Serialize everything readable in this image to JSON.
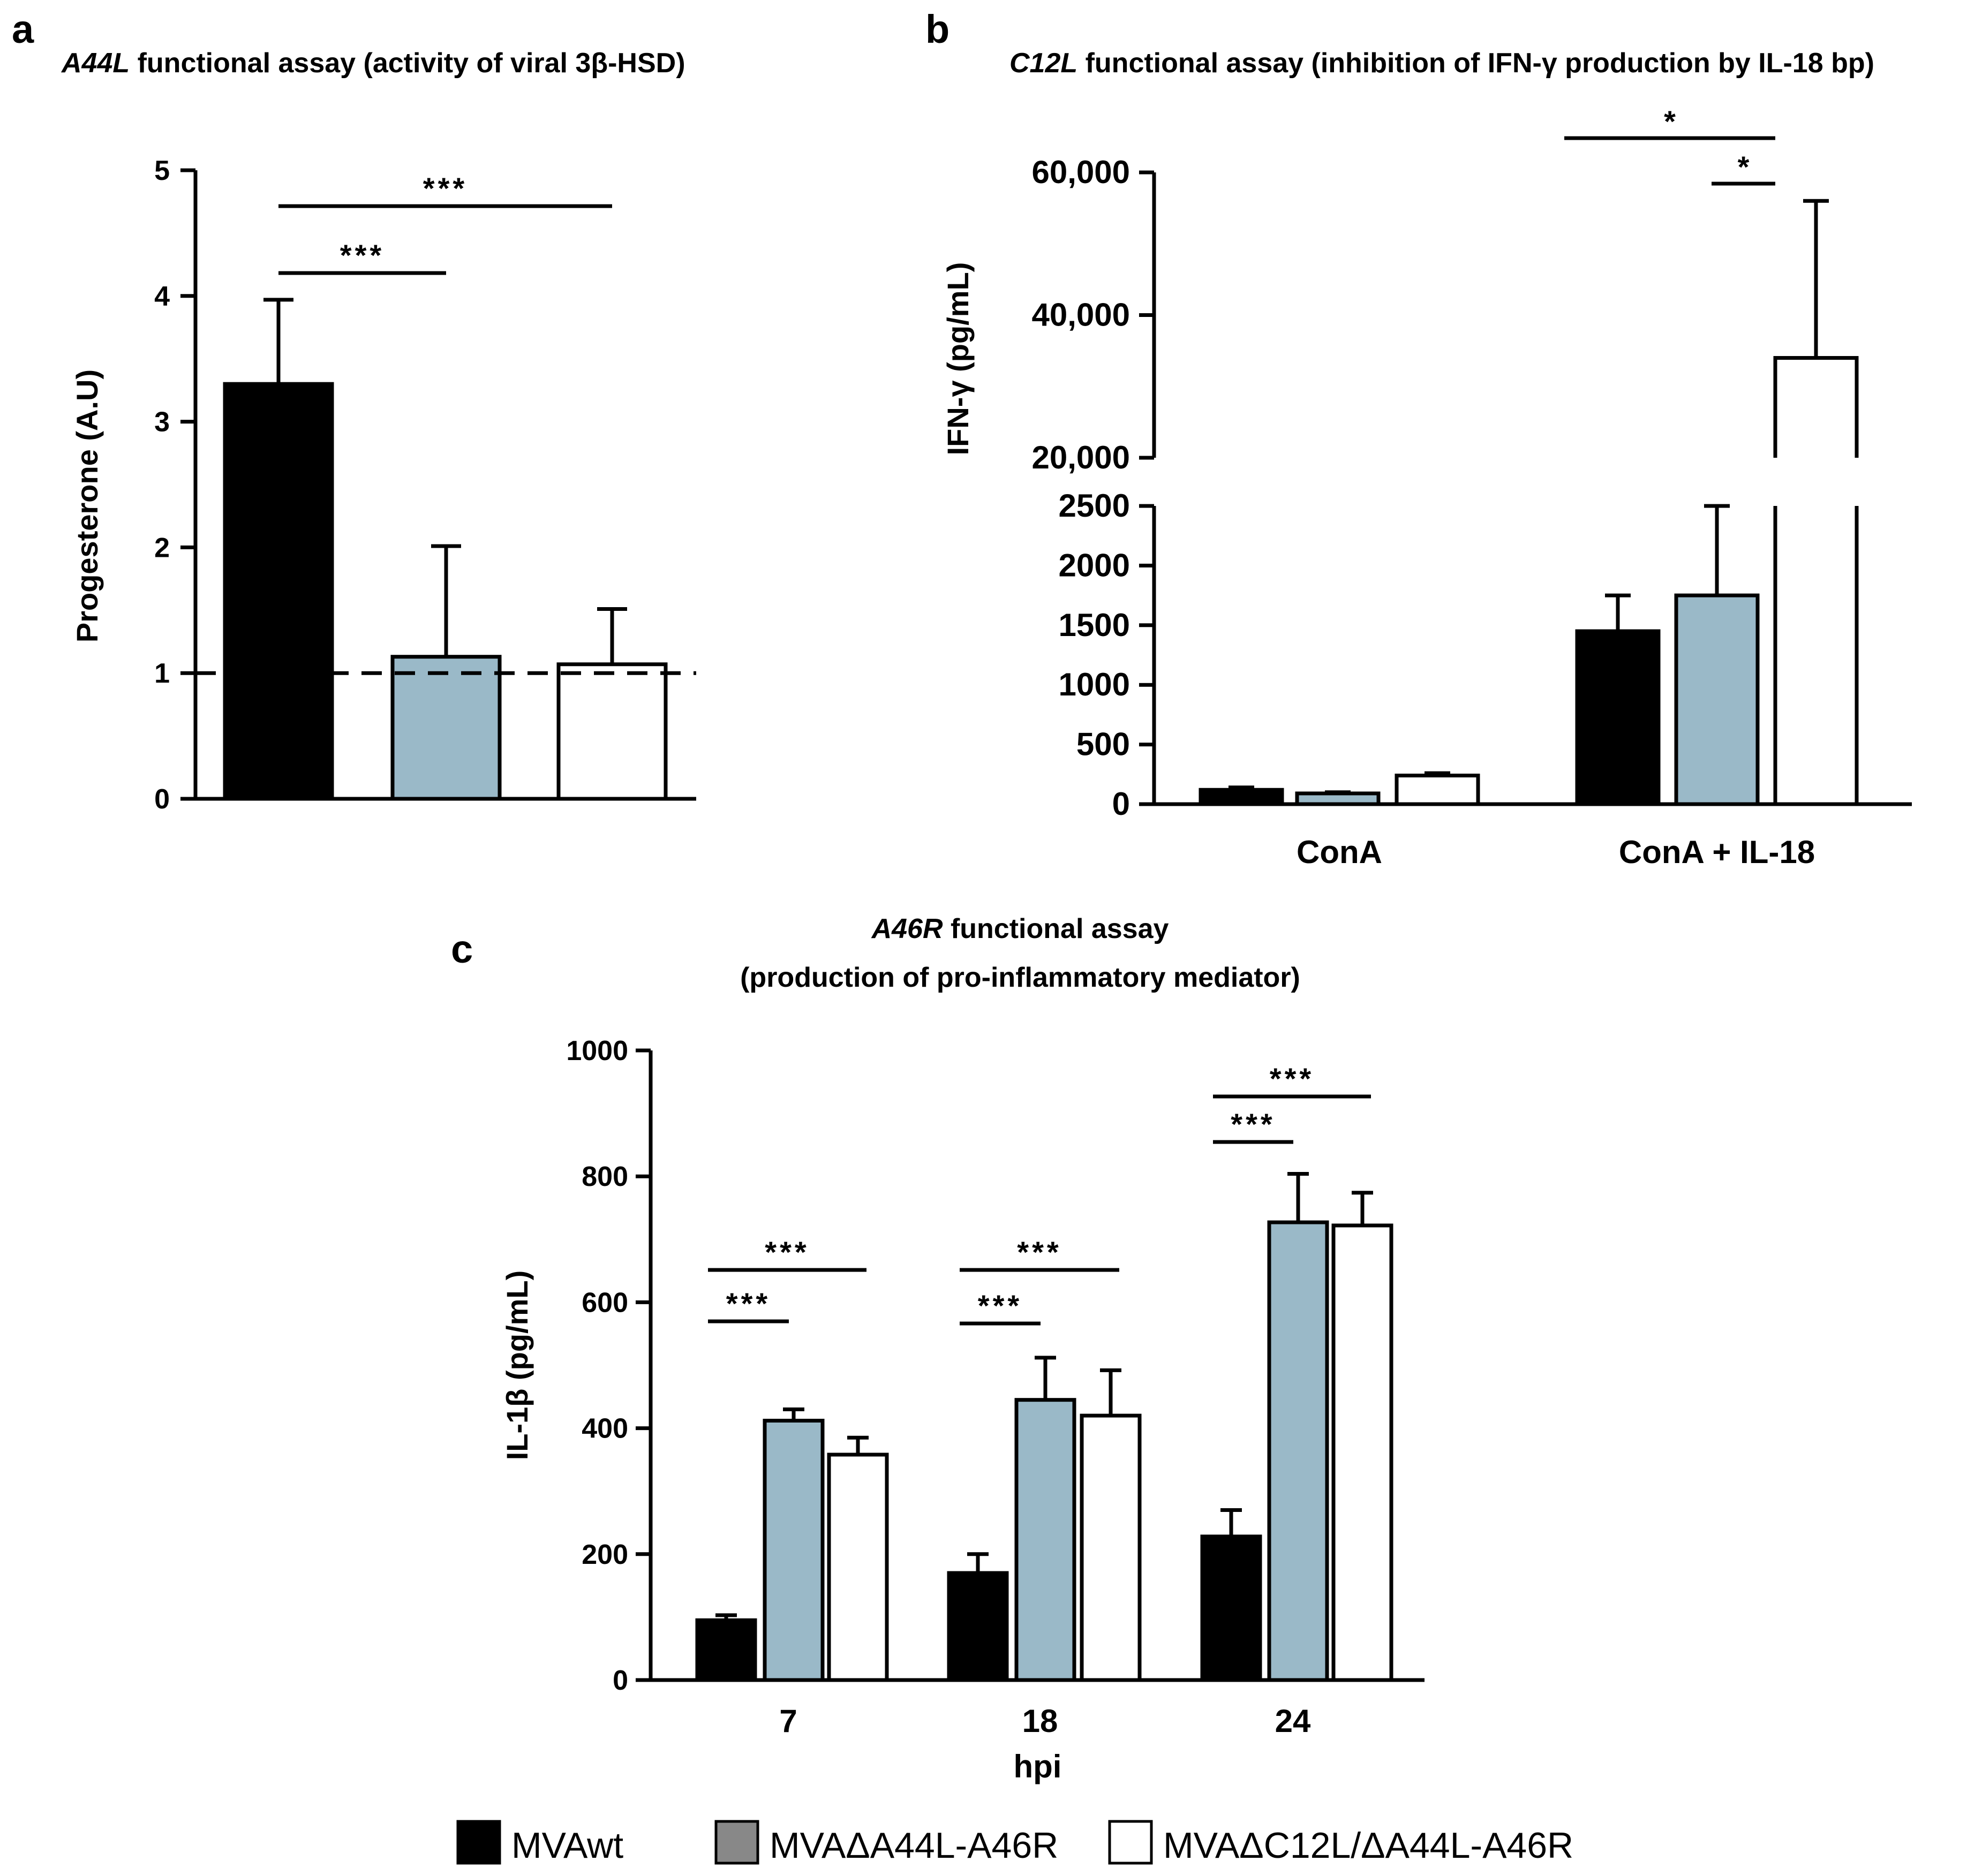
{
  "colors": {
    "series1": "#000000",
    "series2": "#9ab9c8",
    "series3": "#ffffff",
    "legend2": "#888888",
    "stroke": "#000000"
  },
  "panels": {
    "a": {
      "letter": "a",
      "title_italic": "A44L",
      "title_rest": " functional assay (activity of viral 3β-HSD)"
    },
    "b": {
      "letter": "b",
      "title_italic": "C12L",
      "title_rest": " functional assay (inhibition of IFN-γ production by IL-18 bp)"
    },
    "c": {
      "letter": "c",
      "title_italic": "A46R",
      "title_line1_rest": " functional assay",
      "title_line2": "(production of pro-inflammatory mediator)"
    }
  },
  "legend": {
    "items": [
      {
        "label": "MVAwt",
        "color": "#000000"
      },
      {
        "label": "MVAΔA44L-A46R",
        "color": "#888888"
      },
      {
        "label": "MVAΔC12L/ΔA44L-A46R",
        "color": "#ffffff"
      }
    ]
  },
  "chart_data": [
    {
      "panel": "a",
      "type": "bar",
      "ylabel": "Progesterone (A.U)",
      "ylim": [
        0,
        5
      ],
      "yticks": [
        "0",
        "1",
        "2",
        "3",
        "4",
        "5"
      ],
      "series": [
        {
          "name": "MVAwt",
          "value": 3.3,
          "error": 0.67
        },
        {
          "name": "MVAΔA44L-A46R",
          "value": 1.13,
          "error": 0.88
        },
        {
          "name": "MVAΔC12L/ΔA44L-A46R",
          "value": 1.07,
          "error": 0.44
        }
      ],
      "reference_line": 1,
      "significance": [
        {
          "from": 0,
          "to": 1,
          "label": "***"
        },
        {
          "from": 0,
          "to": 2,
          "label": "***"
        }
      ]
    },
    {
      "panel": "b",
      "type": "bar",
      "ylabel": "IFN-γ (pg/mL)",
      "yaxis_break": true,
      "lower_ylim": [
        0,
        2500
      ],
      "lower_yticks": [
        "0",
        "500",
        "1000",
        "1500",
        "2000",
        "2500"
      ],
      "upper_ylim": [
        20000,
        60000
      ],
      "upper_yticks": [
        "20,000",
        "40,000",
        "60,000"
      ],
      "categories": [
        "ConA",
        "ConA + IL-18"
      ],
      "series": [
        {
          "name": "MVAwt",
          "values": [
            120,
            1450
          ],
          "errors": [
            20,
            300
          ]
        },
        {
          "name": "MVAΔA44L-A46R",
          "values": [
            90,
            1750
          ],
          "errors": [
            10,
            750
          ]
        },
        {
          "name": "MVAΔC12L/ΔA44L-A46R",
          "values": [
            240,
            34000
          ],
          "errors": [
            20,
            22000
          ]
        }
      ],
      "significance": [
        {
          "category": 1,
          "from": 0,
          "to": 2,
          "label": "*"
        },
        {
          "category": 1,
          "from": 1,
          "to": 2,
          "label": "*"
        }
      ]
    },
    {
      "panel": "c",
      "type": "bar",
      "ylabel": "IL-1β (pg/mL)",
      "xlabel": "hpi",
      "ylim": [
        0,
        1000
      ],
      "yticks": [
        "0",
        "200",
        "400",
        "600",
        "800",
        "1000"
      ],
      "categories": [
        "7",
        "18",
        "24"
      ],
      "series": [
        {
          "name": "MVAwt",
          "values": [
            95,
            170,
            228
          ],
          "errors": [
            8,
            30,
            42
          ]
        },
        {
          "name": "MVAΔA44L-A46R",
          "values": [
            412,
            445,
            727
          ],
          "errors": [
            18,
            67,
            77
          ]
        },
        {
          "name": "MVAΔC12L/ΔA44L-A46R",
          "values": [
            358,
            420,
            722
          ],
          "errors": [
            27,
            72,
            52
          ]
        }
      ],
      "significance": [
        {
          "category": 0,
          "from": 0,
          "to": 1,
          "label": "***"
        },
        {
          "category": 0,
          "from": 0,
          "to": 2,
          "label": "***"
        },
        {
          "category": 1,
          "from": 0,
          "to": 1,
          "label": "***"
        },
        {
          "category": 1,
          "from": 0,
          "to": 2,
          "label": "***"
        },
        {
          "category": 2,
          "from": 0,
          "to": 1,
          "label": "***"
        },
        {
          "category": 2,
          "from": 0,
          "to": 2,
          "label": "***"
        }
      ]
    }
  ]
}
